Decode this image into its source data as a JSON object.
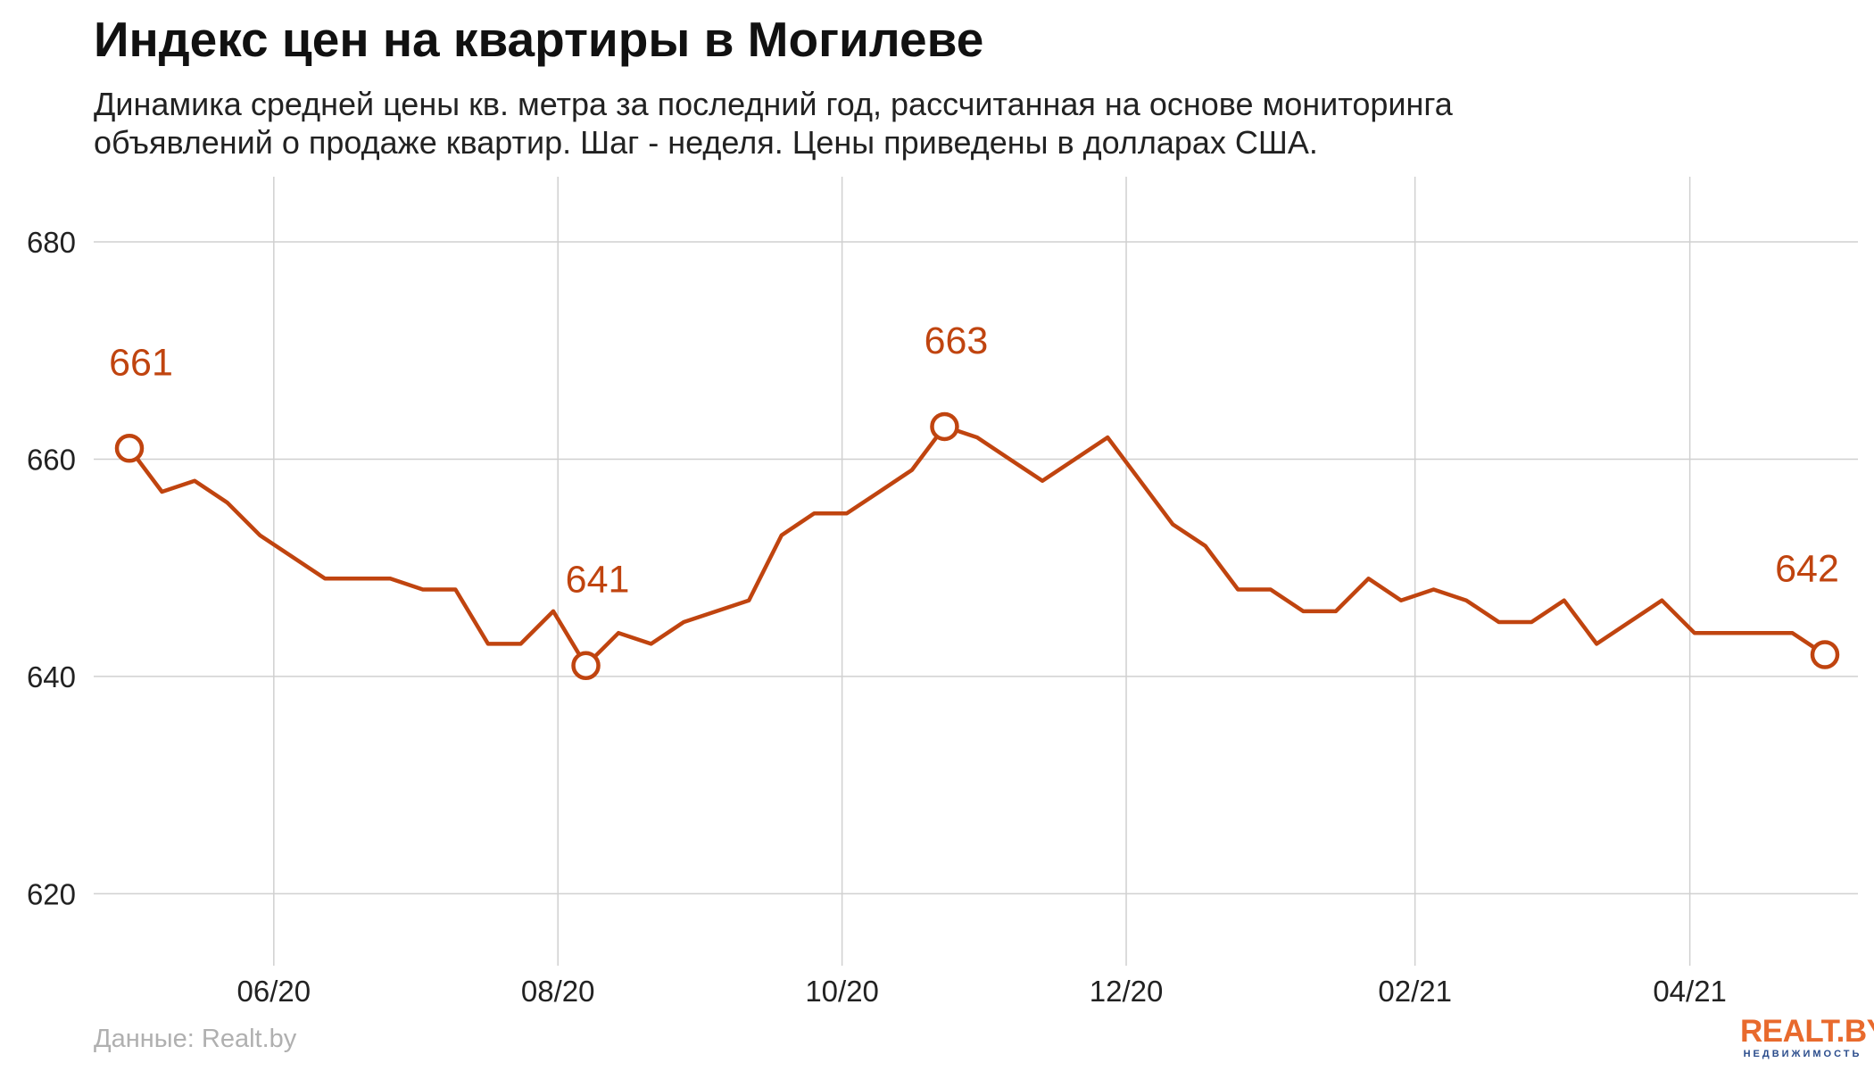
{
  "chart_data": {
    "type": "line",
    "title": "Индекс цен на квартиры в Могилеве",
    "subtitle_lines": [
      "Динамика средней цены кв. метра за последний год, рассчитанная на основе мониторинга",
      "объявлений о продаже квартир. Шаг - неделя. Цены приведены в долларах США."
    ],
    "xlabel": "",
    "ylabel": "",
    "x_tick_labels": [
      "06/20",
      "08/20",
      "10/20",
      "12/20",
      "02/21",
      "04/21"
    ],
    "y_ticks": [
      620,
      640,
      660,
      680
    ],
    "ylim": [
      616,
      686
    ],
    "grid": true,
    "line_color": "#c0440f",
    "x": [
      "2020-05-01",
      "2020-05-08",
      "2020-05-15",
      "2020-05-22",
      "2020-05-29",
      "2020-06-05",
      "2020-06-12",
      "2020-06-19",
      "2020-06-26",
      "2020-07-03",
      "2020-07-10",
      "2020-07-17",
      "2020-07-24",
      "2020-07-31",
      "2020-08-07",
      "2020-08-14",
      "2020-08-21",
      "2020-08-28",
      "2020-09-04",
      "2020-09-11",
      "2020-09-18",
      "2020-09-25",
      "2020-10-02",
      "2020-10-09",
      "2020-10-16",
      "2020-10-23",
      "2020-10-30",
      "2020-11-06",
      "2020-11-13",
      "2020-11-20",
      "2020-11-27",
      "2020-12-04",
      "2020-12-11",
      "2020-12-18",
      "2020-12-25",
      "2021-01-01",
      "2021-01-08",
      "2021-01-15",
      "2021-01-22",
      "2021-01-29",
      "2021-02-05",
      "2021-02-12",
      "2021-02-19",
      "2021-02-26",
      "2021-03-05",
      "2021-03-12",
      "2021-03-19",
      "2021-03-26",
      "2021-04-02",
      "2021-04-09",
      "2021-04-16",
      "2021-04-23",
      "2021-04-30"
    ],
    "values": [
      661,
      657,
      658,
      656,
      653,
      651,
      649,
      649,
      649,
      648,
      648,
      643,
      643,
      646,
      641,
      644,
      643,
      645,
      646,
      647,
      653,
      655,
      655,
      657,
      659,
      663,
      662,
      660,
      658,
      660,
      662,
      658,
      654,
      652,
      648,
      648,
      646,
      646,
      649,
      647,
      648,
      647,
      645,
      645,
      647,
      643,
      645,
      647,
      644,
      644,
      644,
      644,
      642
    ],
    "highlighted_points": [
      {
        "x": "2020-05-01",
        "value": 661,
        "label": "661"
      },
      {
        "x": "2020-08-07",
        "value": 641,
        "label": "641"
      },
      {
        "x": "2020-10-23",
        "value": 663,
        "label": "663"
      },
      {
        "x": "2021-04-30",
        "value": 642,
        "label": "642"
      }
    ]
  },
  "footer": {
    "source": "Данные: Realt.by",
    "logo_main": "REALT.BY",
    "logo_sub": "НЕДВИЖИМОСТЬ"
  }
}
